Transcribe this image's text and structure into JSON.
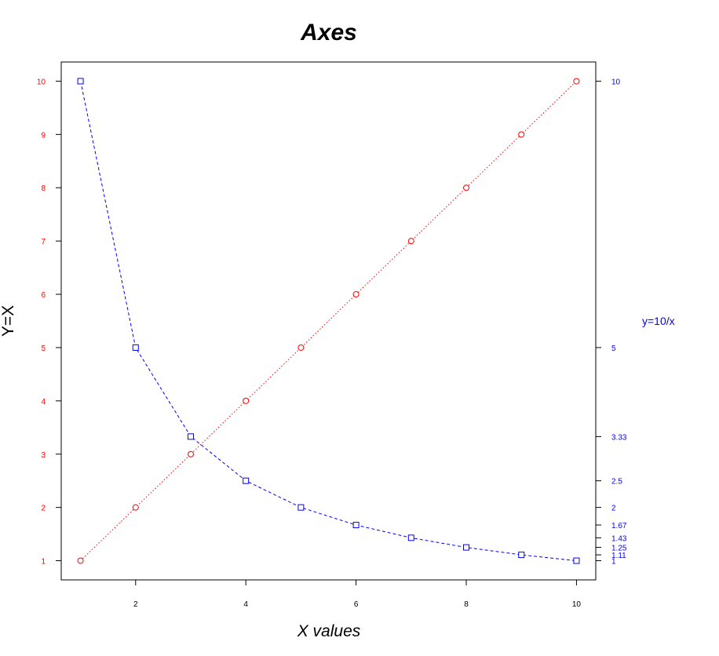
{
  "chart_data": {
    "type": "line",
    "title": "Axes",
    "xlabel": "X values",
    "ylabel": "Y=X",
    "y2label": "y=10/x",
    "x": [
      1,
      2,
      3,
      4,
      5,
      6,
      7,
      8,
      9,
      10
    ],
    "xticks": [
      "2",
      "4",
      "6",
      "8",
      "10"
    ],
    "xlim": [
      0.65,
      10.35
    ],
    "yticks": [
      "1",
      "2",
      "3",
      "4",
      "5",
      "6",
      "7",
      "8",
      "9",
      "10"
    ],
    "ylim": [
      0.64,
      10.36
    ],
    "y2ticks": [
      "10",
      "5",
      "3.33",
      "2.5",
      "2",
      "1.67",
      "1.43",
      "1.25",
      "1.11",
      "1"
    ],
    "y2lim": [
      0.64,
      10.36
    ],
    "grid": false,
    "series": [
      {
        "axis": "left",
        "color": "#ff0000",
        "marker": "circle",
        "line_style": "dotted",
        "values": [
          1,
          2,
          3,
          4,
          5,
          6,
          7,
          8,
          9,
          10
        ]
      },
      {
        "axis": "right",
        "color": "#0000ff",
        "marker": "square",
        "line_style": "dashed",
        "values": [
          10,
          5,
          3.33,
          2.5,
          2,
          1.67,
          1.43,
          1.25,
          1.11,
          1
        ]
      }
    ]
  }
}
